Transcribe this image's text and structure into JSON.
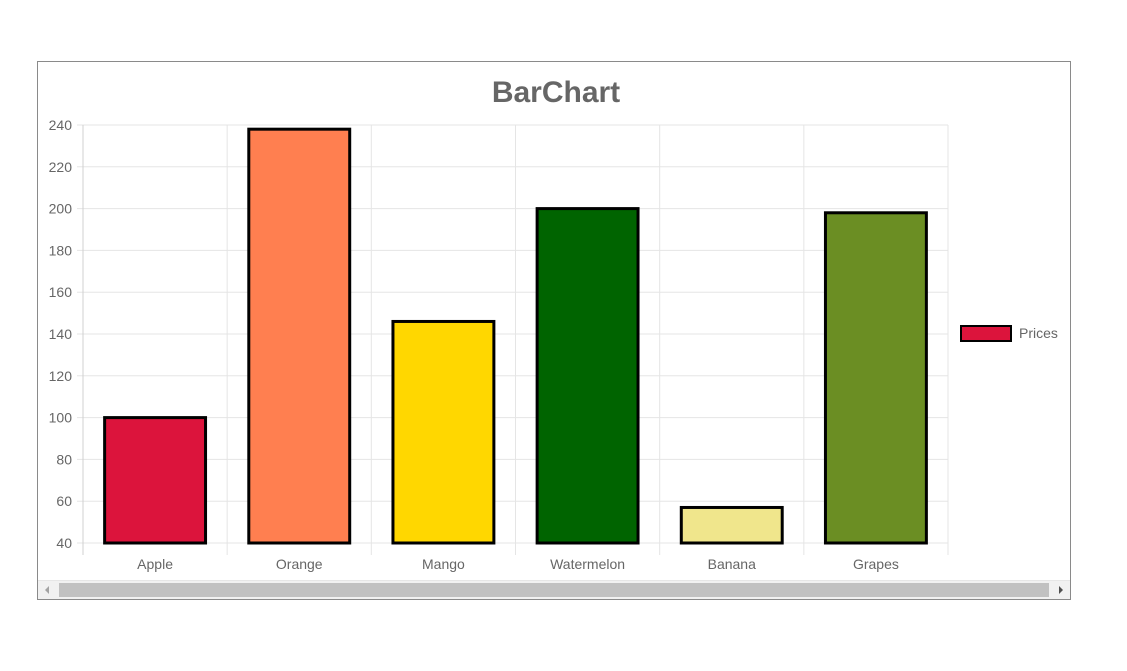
{
  "chart_data": {
    "type": "bar",
    "title": "BarChart",
    "categories": [
      "Apple",
      "Orange",
      "Mango",
      "Watermelon",
      "Banana",
      "Grapes"
    ],
    "series": [
      {
        "name": "Prices",
        "values": [
          100,
          238,
          146,
          200,
          57,
          198
        ],
        "colors": [
          "#dc143c",
          "#ff7f50",
          "#ffd700",
          "#006400",
          "#f0e68c",
          "#6b8e23"
        ],
        "border_color": "#000000"
      }
    ],
    "ylim": [
      40,
      240
    ],
    "yticks": [
      40,
      60,
      80,
      100,
      120,
      140,
      160,
      180,
      200,
      220,
      240
    ],
    "grid": true,
    "legend": {
      "placement": "right",
      "label": "Prices",
      "swatch_color": "#dc143c"
    }
  }
}
